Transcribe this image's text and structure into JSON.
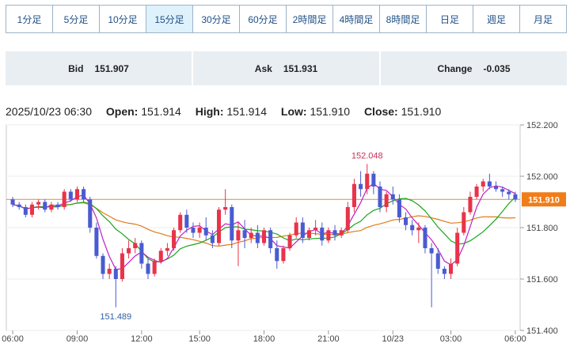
{
  "tabs": [
    {
      "label": "1分足",
      "active": false
    },
    {
      "label": "5分足",
      "active": false
    },
    {
      "label": "10分足",
      "active": false
    },
    {
      "label": "15分足",
      "active": true
    },
    {
      "label": "30分足",
      "active": false
    },
    {
      "label": "60分足",
      "active": false
    },
    {
      "label": "2時間足",
      "active": false
    },
    {
      "label": "4時間足",
      "active": false
    },
    {
      "label": "8時間足",
      "active": false
    },
    {
      "label": "日足",
      "active": false
    },
    {
      "label": "週足",
      "active": false
    },
    {
      "label": "月足",
      "active": false
    }
  ],
  "quotes": {
    "bid_label": "Bid",
    "bid_value": "151.907",
    "ask_label": "Ask",
    "ask_value": "151.931",
    "change_label": "Change",
    "change_value": "-0.035"
  },
  "ohlc": {
    "datetime": "2025/10/23 06:30",
    "open_label": "Open:",
    "open_value": "151.914",
    "high_label": "High:",
    "high_value": "151.914",
    "low_label": "Low:",
    "low_value": "151.910",
    "close_label": "Close:",
    "close_value": "151.910"
  },
  "chart_data": {
    "type": "candlestick",
    "y_ticks": [
      "152.200",
      "152.000",
      "151.800",
      "151.600",
      "151.400"
    ],
    "y_tick_values": [
      152.2,
      152.0,
      151.8,
      151.6,
      151.4
    ],
    "ylim": [
      151.4,
      152.2
    ],
    "x_ticks": [
      "06:00",
      "09:00",
      "12:00",
      "15:00",
      "18:00",
      "21:00",
      "10/23",
      "03:00",
      "06:00"
    ],
    "current_price_label": "151.910",
    "current_price": 151.91,
    "reference_line_price": 151.91,
    "annotations": [
      {
        "text": "152.048",
        "value": 152.048,
        "candle_index": 55
      },
      {
        "text": "151.489",
        "value": 151.489,
        "candle_index": 16
      }
    ],
    "colors": {
      "up": "#e8334a",
      "down": "#4a5bd1",
      "ma_short": "#c01fc0",
      "ma_mid": "#1aa51a",
      "ma_long": "#e07a1a",
      "ref": "#e08a3a",
      "price_tag": "#f07d1a"
    },
    "candles": [
      [
        151.91,
        151.92,
        151.88,
        151.89
      ],
      [
        151.89,
        151.9,
        151.87,
        151.88
      ],
      [
        151.88,
        151.89,
        151.84,
        151.85
      ],
      [
        151.85,
        151.9,
        151.84,
        151.89
      ],
      [
        151.89,
        151.91,
        151.87,
        151.9
      ],
      [
        151.9,
        151.91,
        151.86,
        151.87
      ],
      [
        151.87,
        151.9,
        151.86,
        151.89
      ],
      [
        151.89,
        151.9,
        151.87,
        151.88
      ],
      [
        151.88,
        151.95,
        151.87,
        151.94
      ],
      [
        151.94,
        151.95,
        151.9,
        151.91
      ],
      [
        151.91,
        151.96,
        151.9,
        151.95
      ],
      [
        151.95,
        151.96,
        151.9,
        151.91
      ],
      [
        151.91,
        151.92,
        151.78,
        151.8
      ],
      [
        151.8,
        151.82,
        151.68,
        151.69
      ],
      [
        151.69,
        151.7,
        151.6,
        151.62
      ],
      [
        151.62,
        151.66,
        151.6,
        151.64
      ],
      [
        151.64,
        151.65,
        151.49,
        151.6
      ],
      [
        151.6,
        151.72,
        151.59,
        151.7
      ],
      [
        151.7,
        151.75,
        151.68,
        151.72
      ],
      [
        151.72,
        151.76,
        151.7,
        151.74
      ],
      [
        151.74,
        151.75,
        151.64,
        151.66
      ],
      [
        151.66,
        151.68,
        151.6,
        151.62
      ],
      [
        151.62,
        151.68,
        151.61,
        151.67
      ],
      [
        151.67,
        151.72,
        151.66,
        151.71
      ],
      [
        151.71,
        151.74,
        151.69,
        151.72
      ],
      [
        151.72,
        151.8,
        151.71,
        151.79
      ],
      [
        151.79,
        151.86,
        151.78,
        151.85
      ],
      [
        151.85,
        151.87,
        151.78,
        151.8
      ],
      [
        151.8,
        151.82,
        151.76,
        151.78
      ],
      [
        151.78,
        151.82,
        151.76,
        151.8
      ],
      [
        151.8,
        151.84,
        151.75,
        151.77
      ],
      [
        151.77,
        151.79,
        151.72,
        151.74
      ],
      [
        151.74,
        151.88,
        151.73,
        151.87
      ],
      [
        151.87,
        151.95,
        151.85,
        151.88
      ],
      [
        151.88,
        151.89,
        151.72,
        151.75
      ],
      [
        151.75,
        151.82,
        151.65,
        151.79
      ],
      [
        151.79,
        151.83,
        151.72,
        151.76
      ],
      [
        151.76,
        151.8,
        151.74,
        151.78
      ],
      [
        151.78,
        151.81,
        151.72,
        151.74
      ],
      [
        151.74,
        151.8,
        151.73,
        151.79
      ],
      [
        151.79,
        151.8,
        151.7,
        151.72
      ],
      [
        151.72,
        151.75,
        151.64,
        151.67
      ],
      [
        151.67,
        151.73,
        151.66,
        151.72
      ],
      [
        151.72,
        151.78,
        151.71,
        151.77
      ],
      [
        151.77,
        151.84,
        151.76,
        151.82
      ],
      [
        151.82,
        151.84,
        151.74,
        151.76
      ],
      [
        151.76,
        151.8,
        151.75,
        151.79
      ],
      [
        151.79,
        151.83,
        151.77,
        151.8
      ],
      [
        151.8,
        151.82,
        151.73,
        151.75
      ],
      [
        151.75,
        151.8,
        151.74,
        151.79
      ],
      [
        151.79,
        151.81,
        151.75,
        151.77
      ],
      [
        151.77,
        151.8,
        151.76,
        151.79
      ],
      [
        151.79,
        151.9,
        151.78,
        151.88
      ],
      [
        151.88,
        151.99,
        151.86,
        151.97
      ],
      [
        151.97,
        152.02,
        151.92,
        151.95
      ],
      [
        151.95,
        152.048,
        151.93,
        152.01
      ],
      [
        152.01,
        152.02,
        151.93,
        151.96
      ],
      [
        151.96,
        151.98,
        151.86,
        151.88
      ],
      [
        151.88,
        151.94,
        151.86,
        151.93
      ],
      [
        151.93,
        151.96,
        151.89,
        151.91
      ],
      [
        151.91,
        151.93,
        151.82,
        151.84
      ],
      [
        151.84,
        151.86,
        151.79,
        151.81
      ],
      [
        151.81,
        151.83,
        151.77,
        151.79
      ],
      [
        151.79,
        151.82,
        151.74,
        151.8
      ],
      [
        151.8,
        151.81,
        151.7,
        151.72
      ],
      [
        151.72,
        151.74,
        151.49,
        151.7
      ],
      [
        151.7,
        151.72,
        151.62,
        151.64
      ],
      [
        151.64,
        151.65,
        151.6,
        151.62
      ],
      [
        151.62,
        151.68,
        151.6,
        151.66
      ],
      [
        151.66,
        151.8,
        151.65,
        151.78
      ],
      [
        151.78,
        151.88,
        151.77,
        151.86
      ],
      [
        151.86,
        151.94,
        151.85,
        151.92
      ],
      [
        151.92,
        151.97,
        151.91,
        151.96
      ],
      [
        151.96,
        151.99,
        151.94,
        151.98
      ],
      [
        151.98,
        152.01,
        151.95,
        151.96
      ],
      [
        151.96,
        151.98,
        151.94,
        151.95
      ],
      [
        151.95,
        151.96,
        151.92,
        151.94
      ],
      [
        151.94,
        151.95,
        151.91,
        151.93
      ],
      [
        151.93,
        151.94,
        151.9,
        151.91
      ]
    ]
  }
}
